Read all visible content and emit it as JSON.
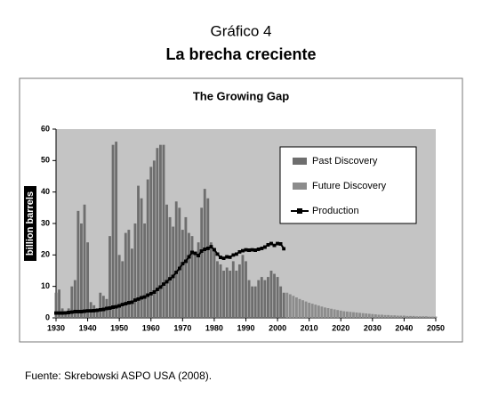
{
  "header": {
    "label": "Gráfico 4",
    "title": "La brecha creciente"
  },
  "chart_data": {
    "type": "bar",
    "title": "The Growing Gap",
    "ylabel": "billion barrels",
    "xlim": [
      1930,
      2050
    ],
    "xticks": [
      1930,
      1940,
      1950,
      1960,
      1970,
      1980,
      1990,
      2000,
      2010,
      2020,
      2030,
      2040,
      2050
    ],
    "ylim": [
      0,
      60
    ],
    "yticks": [
      0,
      10,
      20,
      30,
      40,
      50,
      60
    ],
    "legend": "top-right",
    "series": [
      {
        "name": "Past Discovery",
        "color": "#6e6e6e",
        "x": [
          1930,
          1931,
          1932,
          1933,
          1934,
          1935,
          1936,
          1937,
          1938,
          1939,
          1940,
          1941,
          1942,
          1943,
          1944,
          1945,
          1946,
          1947,
          1948,
          1949,
          1950,
          1951,
          1952,
          1953,
          1954,
          1955,
          1956,
          1957,
          1958,
          1959,
          1960,
          1961,
          1962,
          1963,
          1964,
          1965,
          1966,
          1967,
          1968,
          1969,
          1970,
          1971,
          1972,
          1973,
          1974,
          1975,
          1976,
          1977,
          1978,
          1979,
          1980,
          1981,
          1982,
          1983,
          1984,
          1985,
          1986,
          1987,
          1988,
          1989,
          1990,
          1991,
          1992,
          1993,
          1994,
          1995,
          1996,
          1997,
          1998,
          1999,
          2000,
          2001,
          2002
        ],
        "values": [
          8,
          9,
          3,
          2,
          3,
          10,
          12,
          34,
          30,
          36,
          24,
          5,
          4,
          3,
          8,
          7,
          6,
          26,
          55,
          56,
          20,
          18,
          27,
          28,
          22,
          30,
          42,
          38,
          30,
          44,
          48,
          50,
          54,
          55,
          55,
          36,
          32,
          29,
          37,
          35,
          28,
          32,
          27,
          26,
          20,
          24,
          35,
          41,
          38,
          24,
          22,
          18,
          17,
          15,
          16,
          15,
          18,
          15,
          17,
          20,
          18,
          12,
          10,
          10,
          12,
          13,
          12,
          13,
          15,
          14,
          13,
          10,
          8
        ]
      },
      {
        "name": "Future Discovery",
        "color": "#8c8c8c",
        "x": [
          2003,
          2004,
          2005,
          2006,
          2007,
          2008,
          2009,
          2010,
          2011,
          2012,
          2013,
          2014,
          2015,
          2016,
          2017,
          2018,
          2019,
          2020,
          2021,
          2022,
          2023,
          2024,
          2025,
          2026,
          2027,
          2028,
          2029,
          2030,
          2031,
          2032,
          2033,
          2034,
          2035,
          2036,
          2037,
          2038,
          2039,
          2040,
          2041,
          2042,
          2043,
          2044,
          2045,
          2046,
          2047,
          2048,
          2049,
          2050
        ],
        "values": [
          8,
          7.5,
          7,
          6.5,
          6,
          5.6,
          5.2,
          4.8,
          4.5,
          4.2,
          3.9,
          3.6,
          3.3,
          3.1,
          2.9,
          2.7,
          2.5,
          2.3,
          2.1,
          2,
          1.9,
          1.8,
          1.7,
          1.6,
          1.5,
          1.4,
          1.3,
          1.2,
          1.1,
          1,
          1,
          0.9,
          0.9,
          0.8,
          0.8,
          0.7,
          0.7,
          0.7,
          0.6,
          0.6,
          0.6,
          0.5,
          0.5,
          0.5,
          0.5,
          0.4,
          0.4,
          0.4
        ]
      },
      {
        "name": "Production",
        "type": "line",
        "color": "#000000",
        "x": [
          1930,
          1931,
          1932,
          1933,
          1934,
          1935,
          1936,
          1937,
          1938,
          1939,
          1940,
          1941,
          1942,
          1943,
          1944,
          1945,
          1946,
          1947,
          1948,
          1949,
          1950,
          1951,
          1952,
          1953,
          1954,
          1955,
          1956,
          1957,
          1958,
          1959,
          1960,
          1961,
          1962,
          1963,
          1964,
          1965,
          1966,
          1967,
          1968,
          1969,
          1970,
          1971,
          1972,
          1973,
          1974,
          1975,
          1976,
          1977,
          1978,
          1979,
          1980,
          1981,
          1982,
          1983,
          1984,
          1985,
          1986,
          1987,
          1988,
          1989,
          1990,
          1991,
          1992,
          1993,
          1994,
          1995,
          1996,
          1997,
          1998,
          1999,
          2000,
          2001,
          2002
        ],
        "values": [
          1.5,
          1.5,
          1.5,
          1.6,
          1.7,
          1.8,
          2,
          2,
          2,
          2.1,
          2.2,
          2.2,
          2.3,
          2.4,
          2.6,
          2.7,
          3,
          3.1,
          3.4,
          3.5,
          3.8,
          4.2,
          4.5,
          4.8,
          5,
          5.6,
          6,
          6.4,
          6.6,
          7.2,
          7.7,
          8.2,
          9,
          9.8,
          10.7,
          11.5,
          12.4,
          13.2,
          14.5,
          15.7,
          17.2,
          18,
          19.4,
          20.8,
          20.5,
          19.8,
          21.2,
          21.8,
          22.1,
          22.6,
          21.7,
          20.3,
          19.2,
          18.9,
          19.4,
          19.3,
          20,
          20.3,
          21,
          21.3,
          21.6,
          21.5,
          21.6,
          21.5,
          21.8,
          22.1,
          22.5,
          23.2,
          23.6,
          23,
          23.6,
          23.5,
          22
        ]
      }
    ]
  },
  "footer": {
    "source": "Fuente: Skrebowski ASPO USA (2008)."
  }
}
